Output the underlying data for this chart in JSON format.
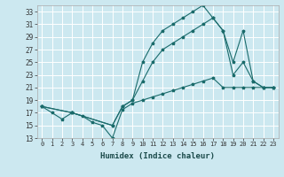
{
  "xlabel": "Humidex (Indice chaleur)",
  "ylabel": "",
  "background_color": "#cce8f0",
  "grid_color": "#ffffff",
  "line_color": "#1a6b6b",
  "xlim": [
    -0.5,
    23.5
  ],
  "ylim": [
    13,
    34
  ],
  "yticks": [
    13,
    15,
    17,
    19,
    21,
    23,
    25,
    27,
    29,
    31,
    33
  ],
  "xticks": [
    0,
    1,
    2,
    3,
    4,
    5,
    6,
    7,
    8,
    9,
    10,
    11,
    12,
    13,
    14,
    15,
    16,
    17,
    18,
    19,
    20,
    21,
    22,
    23
  ],
  "line1_x": [
    0,
    1,
    2,
    3,
    4,
    5,
    6,
    7,
    8,
    9,
    10,
    11,
    12,
    13,
    14,
    15,
    16,
    17,
    18,
    19,
    20,
    21,
    22,
    23
  ],
  "line1_y": [
    18,
    17,
    16,
    17,
    16.5,
    15.5,
    15,
    13,
    17.5,
    18.5,
    19,
    19.5,
    20,
    20.5,
    21,
    21.5,
    22,
    22.5,
    21,
    21,
    21,
    21,
    21,
    21
  ],
  "line2_x": [
    0,
    3,
    7,
    8,
    9,
    10,
    11,
    12,
    13,
    14,
    15,
    16,
    17,
    18,
    19,
    20,
    21,
    22,
    23
  ],
  "line2_y": [
    18,
    17,
    15,
    18,
    19,
    22,
    25,
    27,
    28,
    29,
    30,
    31,
    32,
    30,
    25,
    30,
    22,
    21,
    21
  ],
  "line3_x": [
    0,
    3,
    7,
    8,
    9,
    10,
    11,
    12,
    13,
    14,
    15,
    16,
    17,
    18,
    19,
    20,
    21,
    22,
    23
  ],
  "line3_y": [
    18,
    17,
    15,
    18,
    19,
    25,
    28,
    30,
    31,
    32,
    33,
    34,
    32,
    30,
    23,
    25,
    22,
    21,
    21
  ]
}
